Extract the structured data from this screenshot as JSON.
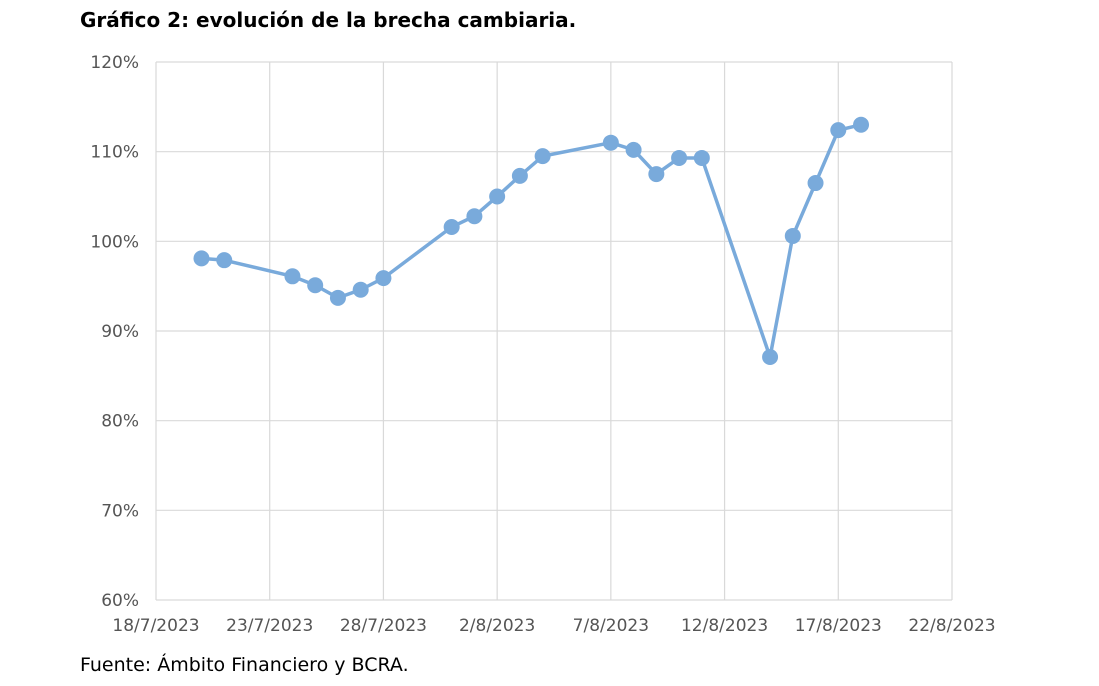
{
  "title": "Gráfico 2: evolución de la brecha cambiaria.",
  "source": "Fuente: Ámbito Financiero y BCRA.",
  "chart_data": {
    "type": "line",
    "title": "Gráfico 2: evolución de la brecha cambiaria.",
    "xlabel": "",
    "ylabel": "",
    "x_axis": {
      "type": "date",
      "range": [
        "2023-07-18",
        "2023-08-22"
      ],
      "ticks": [
        "2023-07-18",
        "2023-07-23",
        "2023-07-28",
        "2023-08-02",
        "2023-08-07",
        "2023-08-12",
        "2023-08-17",
        "2023-08-22"
      ],
      "tick_labels": [
        "18/7/2023",
        "23/7/2023",
        "28/7/2023",
        "2/8/2023",
        "7/8/2023",
        "12/8/2023",
        "17/8/2023",
        "22/8/2023"
      ]
    },
    "y_axis": {
      "range": [
        60,
        120
      ],
      "ticks": [
        60,
        70,
        80,
        90,
        100,
        110,
        120
      ],
      "tick_labels": [
        "60%",
        "70%",
        "80%",
        "90%",
        "100%",
        "110%",
        "120%"
      ],
      "unit": "%"
    },
    "grid": true,
    "colors": {
      "series": "#79aadb",
      "grid": "#d9d9d9"
    },
    "series": [
      {
        "points": [
          {
            "x": "2023-07-20",
            "y": 98.1
          },
          {
            "x": "2023-07-21",
            "y": 97.9
          },
          {
            "x": "2023-07-24",
            "y": 96.1
          },
          {
            "x": "2023-07-25",
            "y": 95.1
          },
          {
            "x": "2023-07-26",
            "y": 93.7
          },
          {
            "x": "2023-07-27",
            "y": 94.6
          },
          {
            "x": "2023-07-28",
            "y": 95.9
          },
          {
            "x": "2023-07-31",
            "y": 101.6
          },
          {
            "x": "2023-08-01",
            "y": 102.8
          },
          {
            "x": "2023-08-02",
            "y": 105.0
          },
          {
            "x": "2023-08-03",
            "y": 107.3
          },
          {
            "x": "2023-08-04",
            "y": 109.5
          },
          {
            "x": "2023-08-07",
            "y": 111.0
          },
          {
            "x": "2023-08-08",
            "y": 110.2
          },
          {
            "x": "2023-08-09",
            "y": 107.5
          },
          {
            "x": "2023-08-10",
            "y": 109.3
          },
          {
            "x": "2023-08-11",
            "y": 109.3
          },
          {
            "x": "2023-08-14",
            "y": 87.1
          },
          {
            "x": "2023-08-15",
            "y": 100.6
          },
          {
            "x": "2023-08-16",
            "y": 106.5
          },
          {
            "x": "2023-08-17",
            "y": 112.4
          },
          {
            "x": "2023-08-18",
            "y": 113.0
          }
        ]
      }
    ]
  }
}
